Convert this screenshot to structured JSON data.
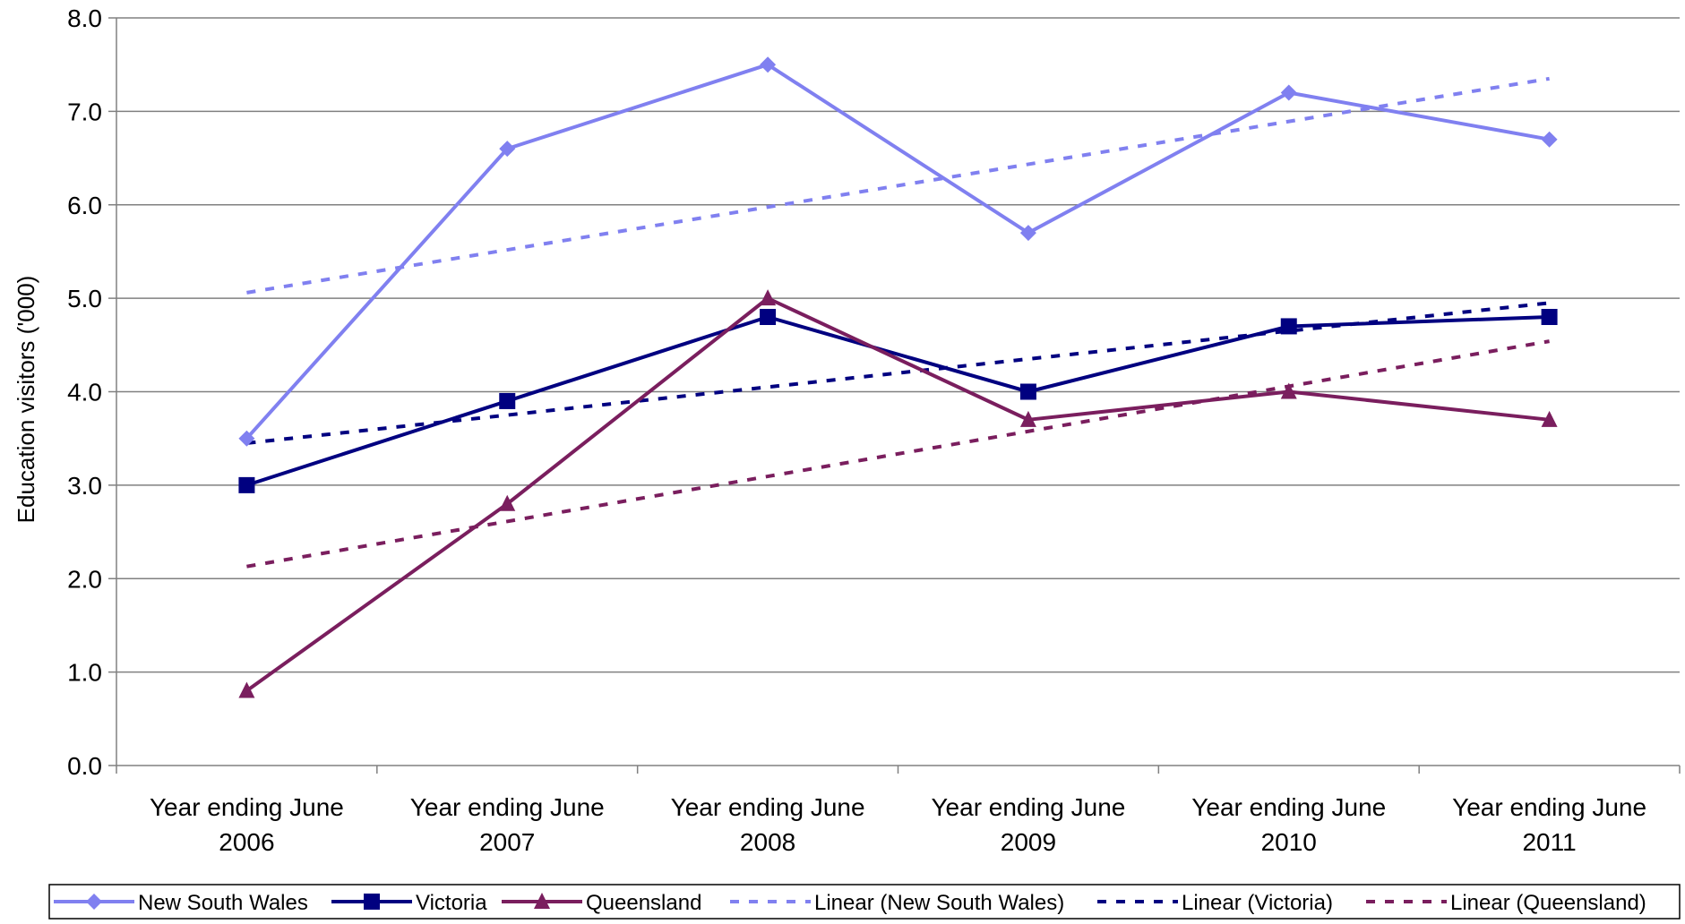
{
  "chart_data": {
    "type": "line",
    "ylabel": "Education visitors ('000)",
    "ylim": [
      0,
      8
    ],
    "y_ticks": [
      "0.0",
      "1.0",
      "2.0",
      "3.0",
      "4.0",
      "5.0",
      "6.0",
      "7.0",
      "8.0"
    ],
    "categories": [
      [
        "Year ending June",
        "2006"
      ],
      [
        "Year ending June",
        "2007"
      ],
      [
        "Year ending June",
        "2008"
      ],
      [
        "Year ending June",
        "2009"
      ],
      [
        "Year ending June",
        "2010"
      ],
      [
        "Year ending June",
        "2011"
      ]
    ],
    "grid": "horizontal",
    "legend_position": "bottom",
    "series": [
      {
        "name": "New South Wales",
        "values": [
          3.5,
          6.6,
          7.5,
          5.7,
          7.2,
          6.7
        ],
        "color": "#8080F0",
        "marker": "diamond"
      },
      {
        "name": "Victoria",
        "values": [
          3.0,
          3.9,
          4.8,
          4.0,
          4.7,
          4.8
        ],
        "color": "#000080",
        "marker": "square"
      },
      {
        "name": "Queensland",
        "values": [
          0.8,
          2.8,
          5.0,
          3.7,
          4.0,
          3.7
        ],
        "color": "#7A1E5E",
        "marker": "triangle"
      }
    ],
    "trendlines": [
      {
        "name": "Linear (New South Wales)",
        "start": 5.06,
        "end": 7.35,
        "color": "#8080F0"
      },
      {
        "name": "Linear (Victoria)",
        "start": 3.45,
        "end": 4.95,
        "color": "#000080"
      },
      {
        "name": "Linear (Queensland)",
        "start": 2.13,
        "end": 4.54,
        "color": "#7A1E5E"
      }
    ]
  }
}
